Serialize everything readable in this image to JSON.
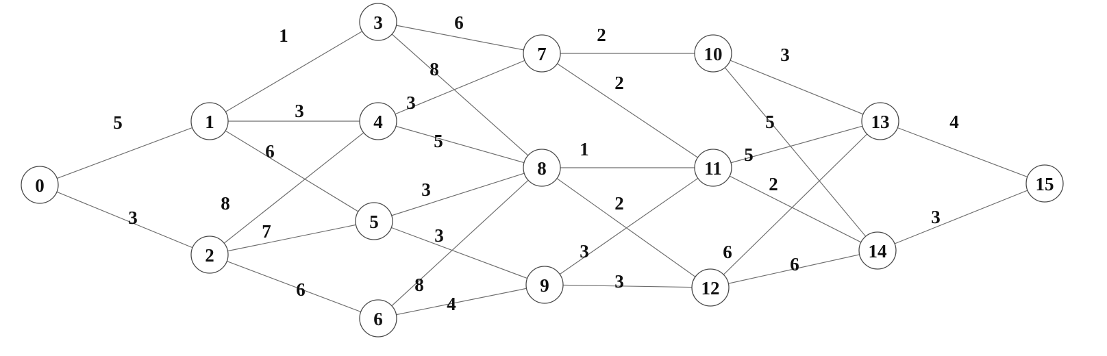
{
  "graph": {
    "nodes": [
      {
        "id": "0",
        "label": "0"
      },
      {
        "id": "1",
        "label": "1"
      },
      {
        "id": "2",
        "label": "2"
      },
      {
        "id": "3",
        "label": "3"
      },
      {
        "id": "4",
        "label": "4"
      },
      {
        "id": "5",
        "label": "5"
      },
      {
        "id": "6",
        "label": "6"
      },
      {
        "id": "7",
        "label": "7"
      },
      {
        "id": "8",
        "label": "8"
      },
      {
        "id": "9",
        "label": "9"
      },
      {
        "id": "10",
        "label": "10"
      },
      {
        "id": "11",
        "label": "11"
      },
      {
        "id": "12",
        "label": "12"
      },
      {
        "id": "13",
        "label": "13"
      },
      {
        "id": "14",
        "label": "14"
      },
      {
        "id": "15",
        "label": "15"
      }
    ],
    "edges": [
      {
        "from": "0",
        "to": "1",
        "weight": "5"
      },
      {
        "from": "0",
        "to": "2",
        "weight": "3"
      },
      {
        "from": "1",
        "to": "3",
        "weight": "1"
      },
      {
        "from": "1",
        "to": "4",
        "weight": "3"
      },
      {
        "from": "1",
        "to": "5",
        "weight": "6"
      },
      {
        "from": "2",
        "to": "4",
        "weight": "8"
      },
      {
        "from": "2",
        "to": "5",
        "weight": "7"
      },
      {
        "from": "2",
        "to": "6",
        "weight": "6"
      },
      {
        "from": "3",
        "to": "7",
        "weight": "6"
      },
      {
        "from": "3",
        "to": "8",
        "weight": "8"
      },
      {
        "from": "4",
        "to": "7",
        "weight": "3"
      },
      {
        "from": "4",
        "to": "8",
        "weight": "5"
      },
      {
        "from": "5",
        "to": "8",
        "weight": "3"
      },
      {
        "from": "5",
        "to": "9",
        "weight": "3"
      },
      {
        "from": "6",
        "to": "8",
        "weight": "8"
      },
      {
        "from": "6",
        "to": "9",
        "weight": "4"
      },
      {
        "from": "7",
        "to": "10",
        "weight": "2"
      },
      {
        "from": "7",
        "to": "11",
        "weight": "2"
      },
      {
        "from": "8",
        "to": "11",
        "weight": "1"
      },
      {
        "from": "8",
        "to": "12",
        "weight": "2"
      },
      {
        "from": "9",
        "to": "11",
        "weight": "3"
      },
      {
        "from": "9",
        "to": "12",
        "weight": "3"
      },
      {
        "from": "10",
        "to": "13",
        "weight": "3"
      },
      {
        "from": "10",
        "to": "14",
        "weight": "5"
      },
      {
        "from": "11",
        "to": "13",
        "weight": "5"
      },
      {
        "from": "11",
        "to": "14",
        "weight": "2"
      },
      {
        "from": "12",
        "to": "13",
        "weight": "6"
      },
      {
        "from": "12",
        "to": "14",
        "weight": "6"
      },
      {
        "from": "13",
        "to": "15",
        "weight": "4"
      },
      {
        "from": "14",
        "to": "15",
        "weight": "3"
      }
    ]
  }
}
